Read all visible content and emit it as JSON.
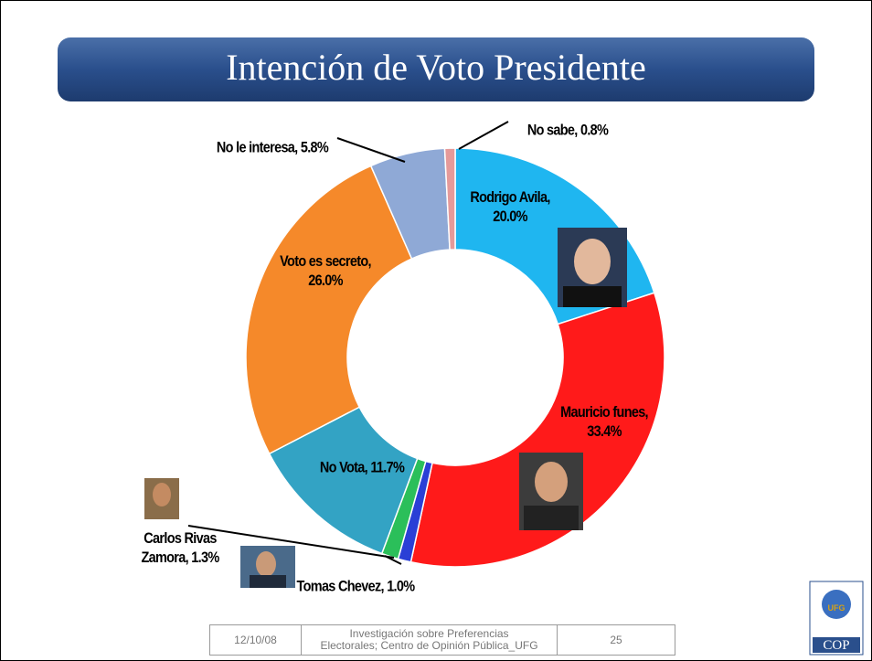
{
  "chart_data": {
    "type": "donut",
    "title": "Intención de Voto Presidente",
    "categories": [
      "Rodrigo Avila,",
      "Mauricio funes,",
      "Tomas Chevez,",
      "Carlos Rivas Zamora,",
      "No Vota,",
      "Voto es secreto,",
      "No le interesa,",
      "No sabe,"
    ],
    "values": [
      20.0,
      33.4,
      1.0,
      1.3,
      11.7,
      26.0,
      5.8,
      0.8
    ],
    "value_labels": [
      "20.0%",
      "33.4%",
      "1.0%",
      "1.3%",
      "11.7%",
      "26.0%",
      "5.8%",
      "0.8%"
    ],
    "colors": [
      "#1fb6f0",
      "#ff1a1a",
      "#2a3fd6",
      "#2bbf5a",
      "#33a3c4",
      "#f5892a",
      "#8fa9d6",
      "#e59a9a"
    ]
  },
  "footer": {
    "date": "12/10/08",
    "source": "Investigación sobre Preferencias Electorales; Centro de Opinión Pública_UFG",
    "page": "25"
  },
  "logo": {
    "name": "UFG",
    "unit": "COP"
  }
}
